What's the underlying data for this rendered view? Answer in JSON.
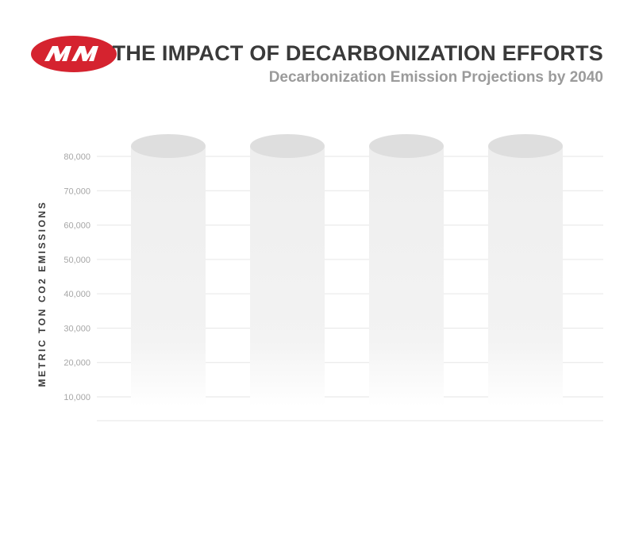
{
  "header": {
    "logo_text": "MM",
    "title": "THE IMPACT OF DECARBONIZATION EFFORTS",
    "subtitle": "Decarbonization Emission Projections by 2040"
  },
  "colors": {
    "brand_red": "#d5232f",
    "title": "#3a3a3a",
    "subtitle": "#9b9b9b",
    "grid": "#e6e6e6",
    "tick": "#a6a6a6",
    "cylinder_top": "#dedede",
    "cylinder_body": "#f1f1f1"
  },
  "chart_data": {
    "type": "bar",
    "title": "THE IMPACT OF DECARBONIZATION EFFORTS",
    "subtitle": "Decarbonization Emission Projections by 2040",
    "xlabel": "",
    "ylabel": "METRIC TON CO2 EMISSIONS",
    "ylim": [
      0,
      80000
    ],
    "yticks": [
      10000,
      20000,
      30000,
      40000,
      50000,
      60000,
      70000,
      80000
    ],
    "ytick_labels": [
      "10,000",
      "20,000",
      "30,000",
      "40,000",
      "50,000",
      "60,000",
      "70,000",
      "80,000"
    ],
    "categories": [
      "",
      "",
      "",
      ""
    ],
    "values": [
      83000,
      83000,
      83000,
      83000
    ],
    "grid": true,
    "style": "cylinder"
  }
}
